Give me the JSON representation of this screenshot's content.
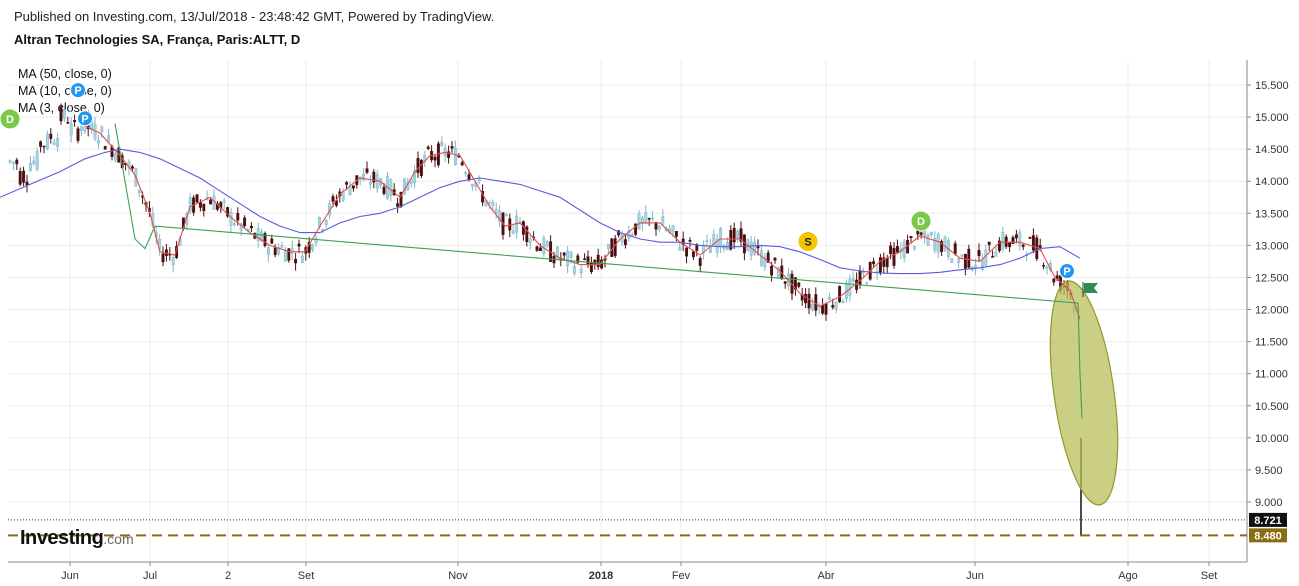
{
  "header": {
    "published": "Published on Investing.com, 13/Jul/2018 - 23:48:42 GMT, Powered by TradingView.",
    "title": "Altran Technologies SA, França, Paris:ALTT, D"
  },
  "legend": [
    {
      "label": "MA (50, close, 0)",
      "color": "#5b5bdc"
    },
    {
      "label": "MA (10, close, 0)",
      "color": "#e05050"
    },
    {
      "label": "MA (3, close, 0)",
      "color": "#3aa055"
    }
  ],
  "logo": {
    "main": "Investing",
    "suffix": ".com"
  },
  "colors": {
    "up": "#a8d4e0",
    "down": "#4a1010",
    "grid": "#ececec",
    "ellipse": "#b8bf5a",
    "marker_blue": "#2196f3",
    "marker_green": "#7cc94a",
    "marker_yellow": "#f5c400",
    "flag": "#2e8b57",
    "dashed": "#8a6d10"
  },
  "chart_data": {
    "type": "line",
    "ylim": [
      8.3,
      15.8
    ],
    "y_ticks": [
      "15.500",
      "15.000",
      "14.500",
      "14.000",
      "13.500",
      "13.000",
      "12.500",
      "12.000",
      "11.500",
      "11.000",
      "10.500",
      "10.000",
      "9.500",
      "9.000"
    ],
    "x_ticks": [
      "Jun",
      "Jul",
      "2",
      "Set",
      "Nov",
      "2018",
      "Fev",
      "Abr",
      "Jun",
      "Ago",
      "Set"
    ],
    "price_labels": [
      {
        "value": 8.721,
        "text": "8.721",
        "style": "dotted"
      },
      {
        "value": 8.48,
        "text": "8.480",
        "style": "dashed"
      }
    ],
    "series": [
      {
        "name": "MA (50, close, 0)",
        "x": [
          0,
          30,
          60,
          85,
          105,
          120,
          140,
          160,
          180,
          200,
          220,
          240,
          260,
          280,
          300,
          320,
          340,
          360,
          380,
          400,
          420,
          440,
          460,
          480,
          500,
          520,
          540,
          560,
          580,
          600,
          620,
          640,
          660,
          680,
          700,
          720,
          740,
          760,
          780,
          800,
          820,
          840,
          860,
          880,
          900,
          920,
          940,
          960,
          980,
          1000,
          1020,
          1040,
          1060,
          1080
        ],
        "values": [
          13.75,
          13.95,
          14.15,
          14.35,
          14.45,
          14.5,
          14.45,
          14.35,
          14.2,
          14.05,
          13.85,
          13.65,
          13.45,
          13.3,
          13.2,
          13.2,
          13.35,
          13.45,
          13.5,
          13.6,
          13.75,
          13.9,
          14.0,
          14.05,
          14.0,
          13.95,
          13.85,
          13.75,
          13.55,
          13.35,
          13.2,
          13.1,
          13.05,
          13.05,
          13.0,
          12.98,
          12.98,
          13.0,
          12.98,
          12.9,
          12.78,
          12.65,
          12.6,
          12.57,
          12.56,
          12.56,
          12.58,
          12.62,
          12.65,
          12.7,
          12.8,
          12.95,
          12.98,
          12.8
        ]
      },
      {
        "name": "MA (10, close, 0)",
        "x": [
          80,
          100,
          120,
          135,
          150,
          160,
          175,
          190,
          210,
          230,
          250,
          270,
          290,
          305,
          320,
          340,
          360,
          380,
          400,
          415,
          430,
          445,
          460,
          475,
          490,
          505,
          520,
          540,
          560,
          580,
          600,
          620,
          640,
          660,
          680,
          700,
          720,
          740,
          760,
          780,
          800,
          820,
          840,
          860,
          880,
          900,
          920,
          940,
          960,
          980,
          1000,
          1020,
          1040,
          1055,
          1070,
          1080
        ],
        "values": [
          14.9,
          14.75,
          14.4,
          14.1,
          13.5,
          12.9,
          12.85,
          13.6,
          13.75,
          13.45,
          13.2,
          13.0,
          12.9,
          12.9,
          13.3,
          13.8,
          14.05,
          14.0,
          13.75,
          14.15,
          14.4,
          14.45,
          14.4,
          14.0,
          13.6,
          13.3,
          13.35,
          13.0,
          12.8,
          12.7,
          12.7,
          13.1,
          13.35,
          13.35,
          13.05,
          12.85,
          13.1,
          13.1,
          12.85,
          12.6,
          12.25,
          12.05,
          12.2,
          12.45,
          12.75,
          12.9,
          13.15,
          13.05,
          12.8,
          12.75,
          13.05,
          13.05,
          12.95,
          12.5,
          12.3,
          11.85
        ]
      },
      {
        "name": "MA (3, close, 0)",
        "x": [
          115,
          125,
          135,
          145,
          155,
          1078,
          1080,
          1082
        ],
        "values": [
          14.9,
          14.0,
          13.1,
          12.95,
          13.3,
          12.1,
          11.0,
          10.3
        ]
      }
    ],
    "markers": [
      {
        "label": "D",
        "x": 10,
        "y": 14.97,
        "color": "green"
      },
      {
        "label": "P",
        "x": 78,
        "y": 15.42,
        "color": "blue"
      },
      {
        "label": "P",
        "x": 85,
        "y": 14.98,
        "color": "blue"
      },
      {
        "label": "S",
        "x": 808,
        "y": 13.06,
        "color": "yellow"
      },
      {
        "label": "D",
        "x": 921,
        "y": 13.38,
        "color": "green"
      },
      {
        "label": "P",
        "x": 1067,
        "y": 12.6,
        "color": "blue"
      }
    ]
  }
}
